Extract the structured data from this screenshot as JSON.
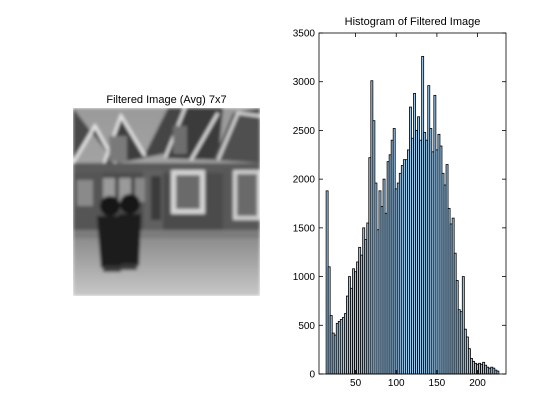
{
  "image_panel": {
    "title": "Filtered Image (Avg) 7x7"
  },
  "chart_data": {
    "type": "bar",
    "title": "Histogram of Filtered Image",
    "xlabel": "",
    "ylabel": "",
    "xlim": [
      5,
      235
    ],
    "ylim": [
      0,
      3500
    ],
    "xticks": [
      50,
      100,
      150,
      200
    ],
    "yticks": [
      0,
      500,
      1000,
      1500,
      2000,
      2500,
      3000,
      3500
    ],
    "bar_color": "#9cc8ec",
    "edge_color": "#000000",
    "bin_width": 2.5,
    "bins": [
      {
        "x": 15,
        "y": 1880
      },
      {
        "x": 17.5,
        "y": 1100
      },
      {
        "x": 20,
        "y": 600
      },
      {
        "x": 22.5,
        "y": 420
      },
      {
        "x": 25,
        "y": 400
      },
      {
        "x": 27.5,
        "y": 520
      },
      {
        "x": 30,
        "y": 540
      },
      {
        "x": 32.5,
        "y": 560
      },
      {
        "x": 35,
        "y": 580
      },
      {
        "x": 37.5,
        "y": 620
      },
      {
        "x": 40,
        "y": 800
      },
      {
        "x": 42.5,
        "y": 1000
      },
      {
        "x": 45,
        "y": 880
      },
      {
        "x": 47.5,
        "y": 1080
      },
      {
        "x": 50,
        "y": 1050
      },
      {
        "x": 52.5,
        "y": 1150
      },
      {
        "x": 55,
        "y": 1300
      },
      {
        "x": 57.5,
        "y": 1220
      },
      {
        "x": 60,
        "y": 1500
      },
      {
        "x": 62.5,
        "y": 1380
      },
      {
        "x": 65,
        "y": 1550
      },
      {
        "x": 67.5,
        "y": 2220
      },
      {
        "x": 70,
        "y": 3010
      },
      {
        "x": 72.5,
        "y": 2600
      },
      {
        "x": 75,
        "y": 1960
      },
      {
        "x": 77.5,
        "y": 1480
      },
      {
        "x": 80,
        "y": 1880
      },
      {
        "x": 82.5,
        "y": 1720
      },
      {
        "x": 85,
        "y": 2000
      },
      {
        "x": 87.5,
        "y": 1650
      },
      {
        "x": 90,
        "y": 2180
      },
      {
        "x": 92.5,
        "y": 2250
      },
      {
        "x": 95,
        "y": 2400
      },
      {
        "x": 97.5,
        "y": 2520
      },
      {
        "x": 100,
        "y": 1900
      },
      {
        "x": 102.5,
        "y": 1960
      },
      {
        "x": 105,
        "y": 2060
      },
      {
        "x": 107.5,
        "y": 2140
      },
      {
        "x": 110,
        "y": 2200
      },
      {
        "x": 112.5,
        "y": 2200
      },
      {
        "x": 115,
        "y": 2300
      },
      {
        "x": 117.5,
        "y": 2740
      },
      {
        "x": 120,
        "y": 2420
      },
      {
        "x": 122.5,
        "y": 2880
      },
      {
        "x": 125,
        "y": 2500
      },
      {
        "x": 127.5,
        "y": 2640
      },
      {
        "x": 130,
        "y": 2400
      },
      {
        "x": 132.5,
        "y": 3260
      },
      {
        "x": 135,
        "y": 2480
      },
      {
        "x": 137.5,
        "y": 2400
      },
      {
        "x": 140,
        "y": 2960
      },
      {
        "x": 142.5,
        "y": 2520
      },
      {
        "x": 145,
        "y": 2280
      },
      {
        "x": 147.5,
        "y": 2860
      },
      {
        "x": 150,
        "y": 2300
      },
      {
        "x": 152.5,
        "y": 2460
      },
      {
        "x": 155,
        "y": 2340
      },
      {
        "x": 157.5,
        "y": 2060
      },
      {
        "x": 160,
        "y": 1940
      },
      {
        "x": 162.5,
        "y": 2150
      },
      {
        "x": 165,
        "y": 1700
      },
      {
        "x": 167.5,
        "y": 1540
      },
      {
        "x": 170,
        "y": 1600
      },
      {
        "x": 172.5,
        "y": 1240
      },
      {
        "x": 175,
        "y": 960
      },
      {
        "x": 177.5,
        "y": 660
      },
      {
        "x": 180,
        "y": 640
      },
      {
        "x": 182.5,
        "y": 1000
      },
      {
        "x": 185,
        "y": 460
      },
      {
        "x": 187.5,
        "y": 380
      },
      {
        "x": 190,
        "y": 260
      },
      {
        "x": 192.5,
        "y": 160
      },
      {
        "x": 195,
        "y": 130
      },
      {
        "x": 197.5,
        "y": 110
      },
      {
        "x": 200,
        "y": 100
      },
      {
        "x": 202.5,
        "y": 110
      },
      {
        "x": 205,
        "y": 100
      },
      {
        "x": 207.5,
        "y": 120
      },
      {
        "x": 210,
        "y": 90
      },
      {
        "x": 212.5,
        "y": 70
      },
      {
        "x": 215,
        "y": 60
      },
      {
        "x": 217.5,
        "y": 70
      },
      {
        "x": 220,
        "y": 60
      },
      {
        "x": 222.5,
        "y": 40
      },
      {
        "x": 225,
        "y": 30
      }
    ]
  }
}
